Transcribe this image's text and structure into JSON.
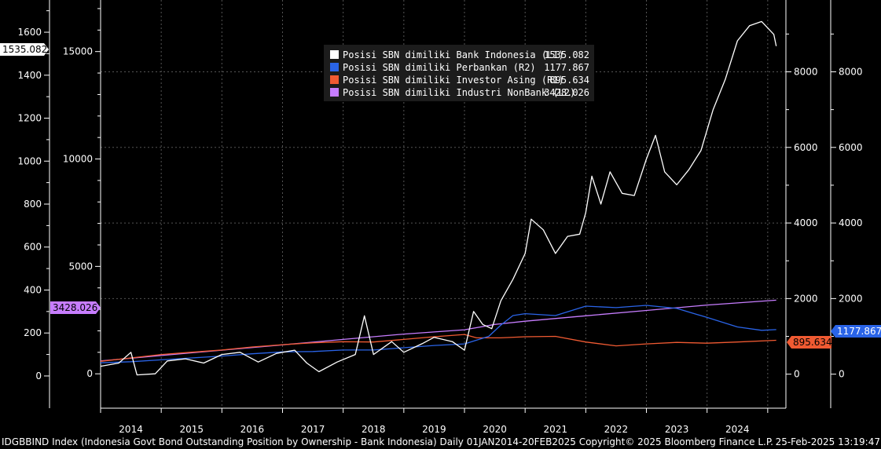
{
  "chart_data": {
    "type": "line",
    "x_range": [
      "2014-01-01",
      "2025-02-20"
    ],
    "year_labels": [
      "2014",
      "2015",
      "2016",
      "2017",
      "2018",
      "2019",
      "2020",
      "2021",
      "2022",
      "2023",
      "2024"
    ],
    "axes": {
      "left_outer": {
        "range": [
          -150,
          1750
        ],
        "ticks": [
          0,
          200,
          400,
          600,
          800,
          1000,
          1200,
          1400,
          1600
        ],
        "tick_labels": [
          "0",
          "200",
          "400",
          "600",
          "800",
          "1000",
          "1200",
          "1400",
          "1600"
        ]
      },
      "left_inner": {
        "range": [
          -1600,
          17400
        ],
        "ticks": [
          0,
          5000,
          10000,
          15000
        ],
        "tick_labels": [
          "0",
          "5000",
          "10000",
          "15000"
        ]
      },
      "right_inner": {
        "range": [
          -900,
          9900
        ],
        "ticks": [
          0,
          2000,
          4000,
          6000,
          8000
        ],
        "tick_labels": [
          "0",
          "2000",
          "4000",
          "6000",
          "8000"
        ]
      },
      "right_outer": {
        "range": [
          -900,
          9900
        ],
        "ticks": [
          0,
          2000,
          4000,
          6000,
          8000
        ],
        "tick_labels": [
          "0",
          "2000",
          "4000",
          "6000",
          "8000"
        ]
      }
    },
    "grid": true,
    "legend_position": "top-center",
    "series": [
      {
        "name": "Posisi SBN dimiliki Bank Indonesia (L1)",
        "last": "1535.082",
        "color": "#ffffff",
        "axis": "left_outer",
        "points": [
          [
            2014.0,
            45
          ],
          [
            2014.3,
            60
          ],
          [
            2014.5,
            110
          ],
          [
            2014.6,
            5
          ],
          [
            2014.9,
            10
          ],
          [
            2015.1,
            70
          ],
          [
            2015.4,
            80
          ],
          [
            2015.7,
            60
          ],
          [
            2016.0,
            100
          ],
          [
            2016.3,
            110
          ],
          [
            2016.6,
            65
          ],
          [
            2016.9,
            105
          ],
          [
            2017.2,
            120
          ],
          [
            2017.4,
            60
          ],
          [
            2017.6,
            20
          ],
          [
            2017.9,
            65
          ],
          [
            2018.2,
            100
          ],
          [
            2018.35,
            280
          ],
          [
            2018.5,
            100
          ],
          [
            2018.8,
            160
          ],
          [
            2019.0,
            110
          ],
          [
            2019.3,
            150
          ],
          [
            2019.5,
            180
          ],
          [
            2019.8,
            160
          ],
          [
            2020.0,
            120
          ],
          [
            2020.15,
            300
          ],
          [
            2020.3,
            240
          ],
          [
            2020.45,
            220
          ],
          [
            2020.6,
            350
          ],
          [
            2020.8,
            450
          ],
          [
            2021.0,
            570
          ],
          [
            2021.1,
            730
          ],
          [
            2021.3,
            680
          ],
          [
            2021.5,
            570
          ],
          [
            2021.7,
            650
          ],
          [
            2021.9,
            660
          ],
          [
            2022.0,
            760
          ],
          [
            2022.1,
            930
          ],
          [
            2022.25,
            800
          ],
          [
            2022.4,
            950
          ],
          [
            2022.6,
            850
          ],
          [
            2022.8,
            840
          ],
          [
            2023.0,
            1010
          ],
          [
            2023.15,
            1120
          ],
          [
            2023.3,
            950
          ],
          [
            2023.5,
            890
          ],
          [
            2023.7,
            960
          ],
          [
            2023.9,
            1050
          ],
          [
            2024.1,
            1240
          ],
          [
            2024.3,
            1380
          ],
          [
            2024.5,
            1560
          ],
          [
            2024.7,
            1630
          ],
          [
            2024.9,
            1650
          ],
          [
            2025.1,
            1590
          ],
          [
            2025.14,
            1535
          ]
        ]
      },
      {
        "name": "Posisi SBN dimiliki Perbankan (R2)",
        "last": "1177.867",
        "color": "#2a64e8",
        "axis": "right_inner",
        "points": [
          [
            2014.0,
            300
          ],
          [
            2014.5,
            330
          ],
          [
            2015.0,
            380
          ],
          [
            2015.5,
            430
          ],
          [
            2016.0,
            480
          ],
          [
            2016.5,
            540
          ],
          [
            2017.0,
            590
          ],
          [
            2017.5,
            600
          ],
          [
            2018.0,
            640
          ],
          [
            2018.5,
            640
          ],
          [
            2019.0,
            700
          ],
          [
            2019.5,
            760
          ],
          [
            2020.0,
            800
          ],
          [
            2020.4,
            1000
          ],
          [
            2020.6,
            1300
          ],
          [
            2020.8,
            1550
          ],
          [
            2021.0,
            1600
          ],
          [
            2021.5,
            1550
          ],
          [
            2022.0,
            1800
          ],
          [
            2022.5,
            1760
          ],
          [
            2023.0,
            1820
          ],
          [
            2023.5,
            1740
          ],
          [
            2024.0,
            1500
          ],
          [
            2024.5,
            1250
          ],
          [
            2024.9,
            1160
          ],
          [
            2025.14,
            1178
          ]
        ]
      },
      {
        "name": "Posisi SBN dimiliki Investor Asing (R1)",
        "last": "895.634",
        "color": "#f05a32",
        "axis": "right_inner",
        "points": [
          [
            2014.0,
            340
          ],
          [
            2014.5,
            430
          ],
          [
            2015.0,
            520
          ],
          [
            2015.5,
            580
          ],
          [
            2016.0,
            640
          ],
          [
            2016.5,
            720
          ],
          [
            2017.0,
            780
          ],
          [
            2017.5,
            830
          ],
          [
            2018.0,
            860
          ],
          [
            2018.5,
            850
          ],
          [
            2019.0,
            920
          ],
          [
            2019.5,
            990
          ],
          [
            2020.0,
            1050
          ],
          [
            2020.2,
            960
          ],
          [
            2020.6,
            960
          ],
          [
            2021.0,
            990
          ],
          [
            2021.5,
            1000
          ],
          [
            2022.0,
            850
          ],
          [
            2022.5,
            750
          ],
          [
            2023.0,
            800
          ],
          [
            2023.5,
            840
          ],
          [
            2024.0,
            820
          ],
          [
            2024.5,
            850
          ],
          [
            2025.14,
            896
          ]
        ]
      },
      {
        "name": "Posisi SBN dimiliki Industri NonBank (L2)",
        "last": "3428.026",
        "color": "#c77dff",
        "axis": "left_inner",
        "points": [
          [
            2014.0,
            600
          ],
          [
            2015.0,
            850
          ],
          [
            2016.0,
            1100
          ],
          [
            2017.0,
            1350
          ],
          [
            2018.0,
            1600
          ],
          [
            2019.0,
            1850
          ],
          [
            2020.0,
            2050
          ],
          [
            2020.5,
            2300
          ],
          [
            2021.0,
            2450
          ],
          [
            2022.0,
            2700
          ],
          [
            2023.0,
            2950
          ],
          [
            2024.0,
            3200
          ],
          [
            2025.14,
            3428
          ]
        ]
      }
    ]
  },
  "value_tags": {
    "bi": {
      "text": "1535.082",
      "bg": "#ffffff",
      "fg": "#000000"
    },
    "nonbank": {
      "text": "3428.026",
      "bg": "#c77dff",
      "fg": "#000000"
    },
    "asing": {
      "text": "895.634",
      "bg": "#f05a32",
      "fg": "#000000"
    },
    "perbankan": {
      "text": "1177.867",
      "bg": "#2a64e8",
      "fg": "#ffffff"
    }
  },
  "footer": {
    "left": "IDGBBIND Index (Indonesia Govt Bond Outstanding Position by Ownership - Bank Indonesia)  Daily 01JAN2014-20FEB2025  Copyright© 2025 Bloomberg Finance L.P.",
    "right": "25-Feb-2025 13:19:47"
  }
}
